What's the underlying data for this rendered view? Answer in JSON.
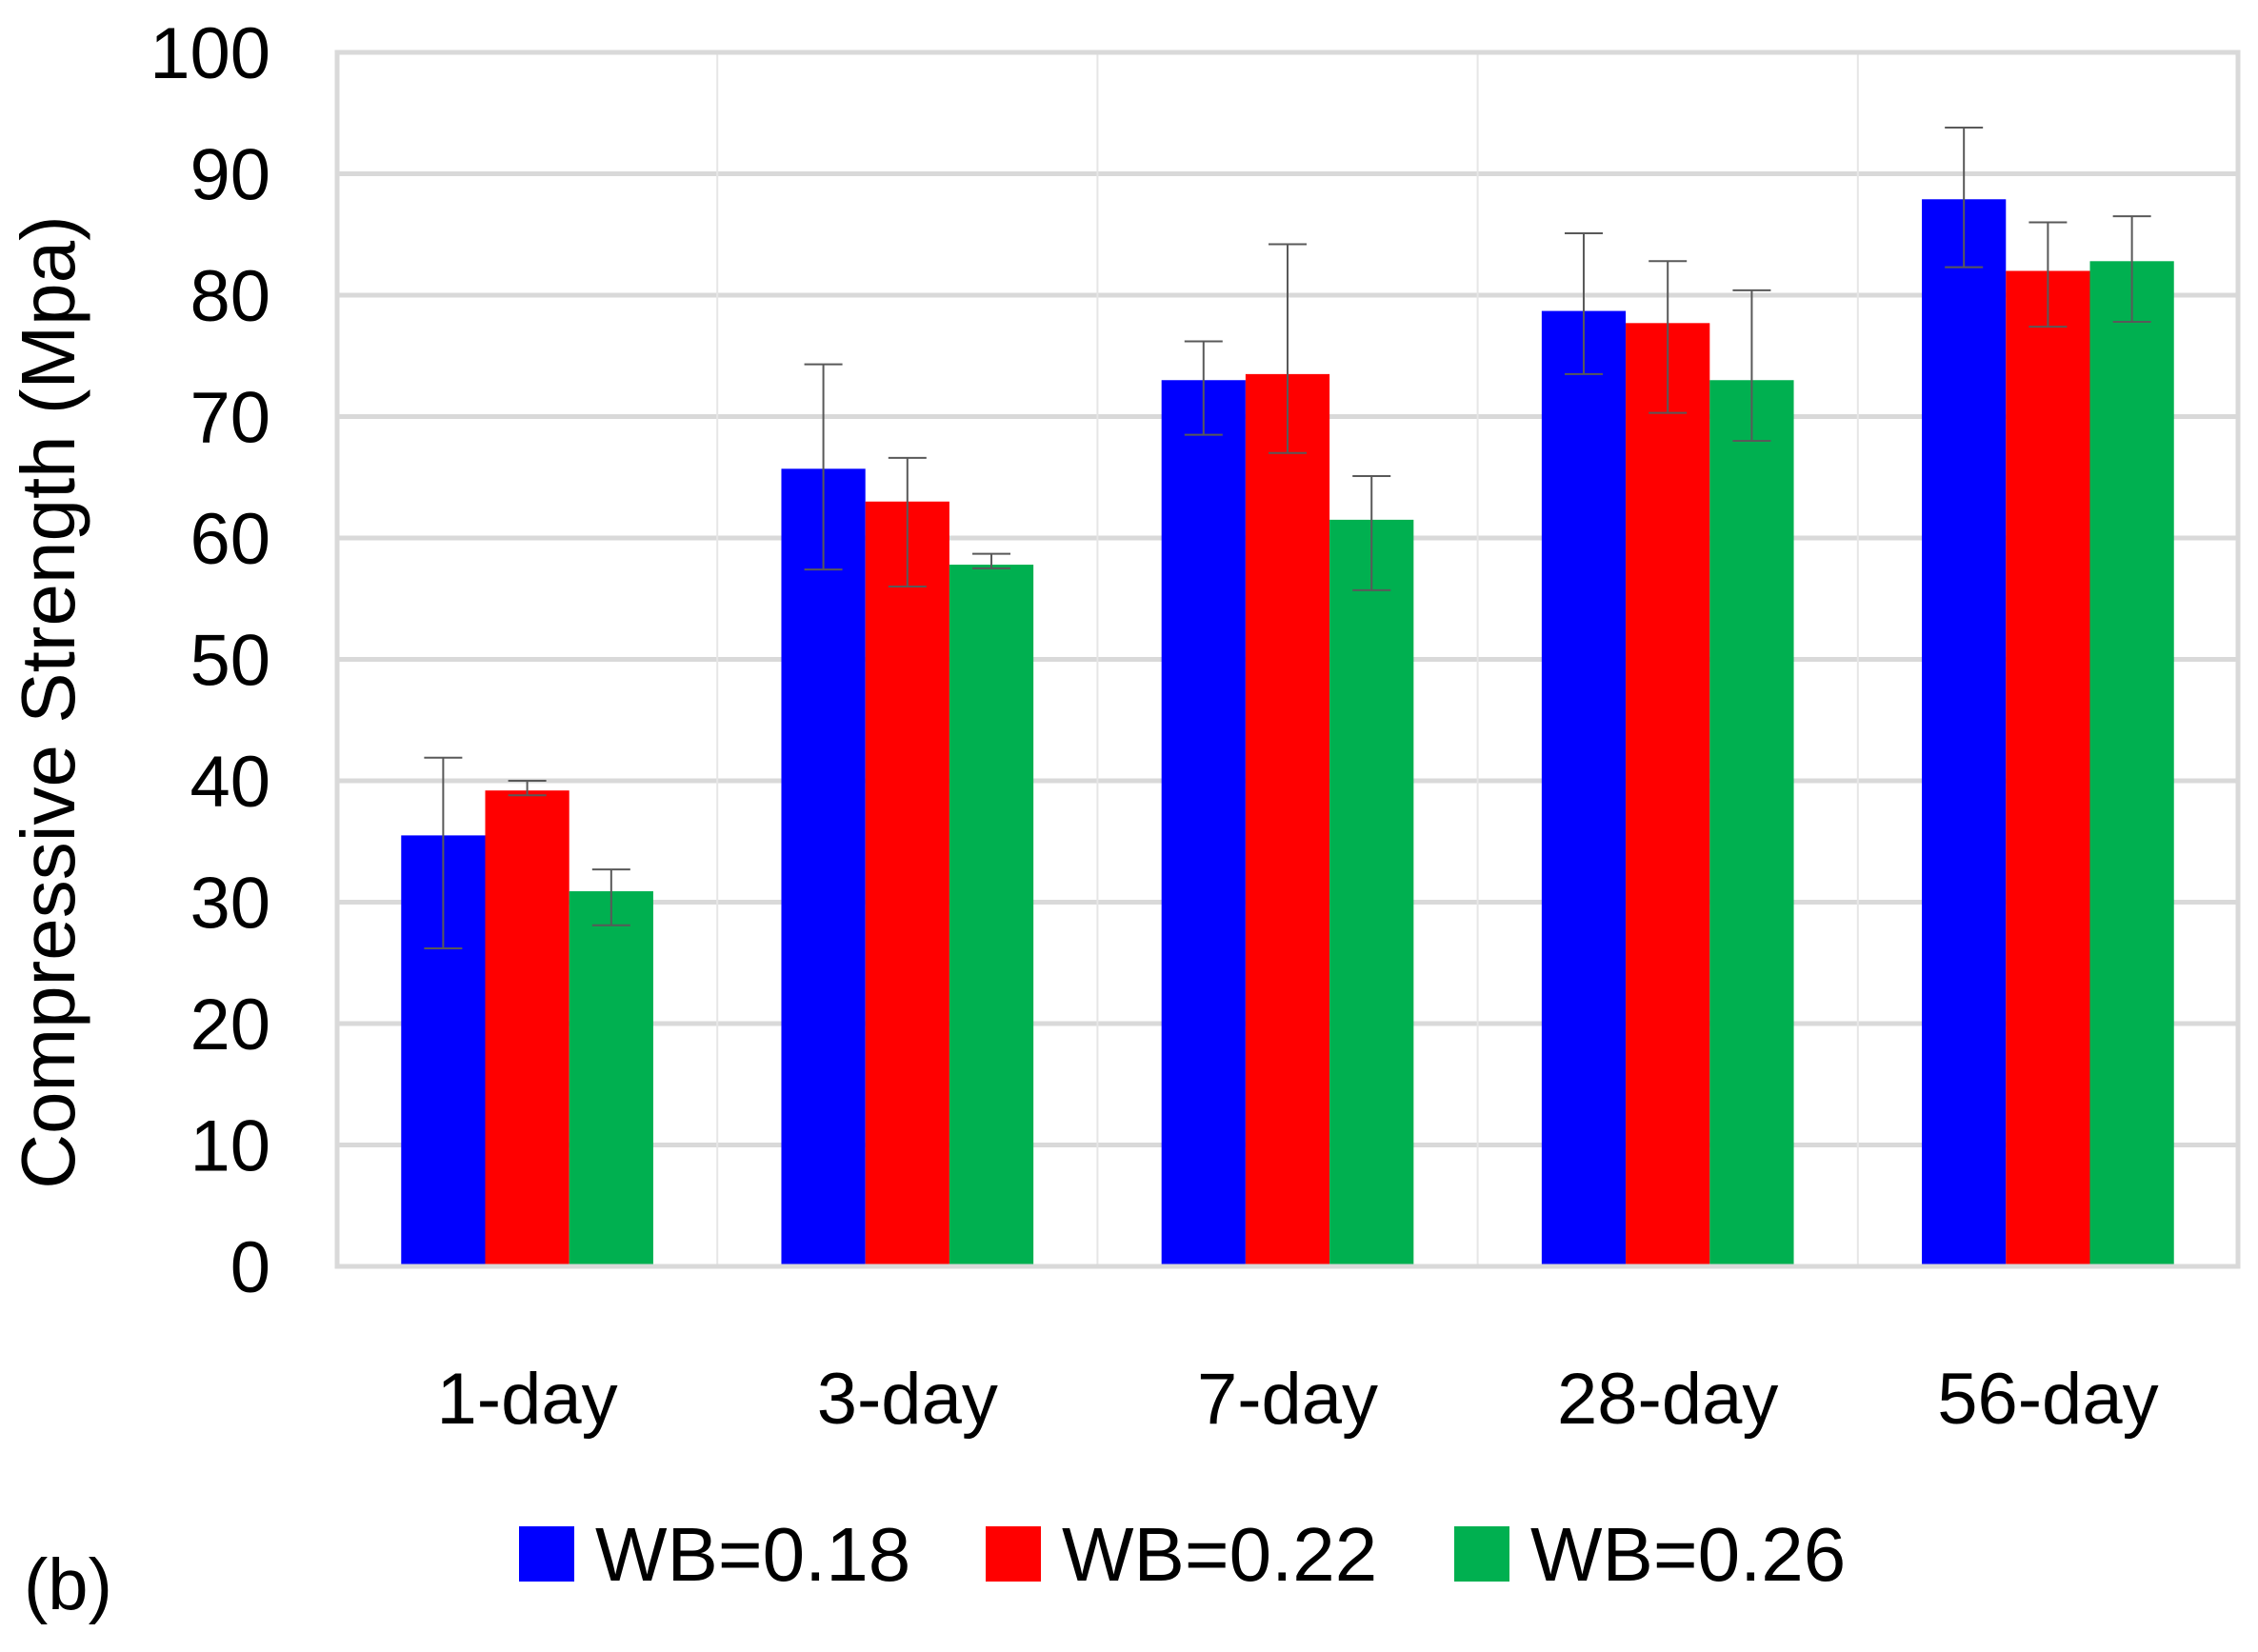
{
  "panel_label": "(b)",
  "chart_data": {
    "type": "bar",
    "title": "",
    "xlabel": "",
    "ylabel": "Compressive Strength (Mpa)",
    "ylim": [
      0,
      100
    ],
    "yticks": [
      0,
      10,
      20,
      30,
      40,
      50,
      60,
      70,
      80,
      90,
      100
    ],
    "grid": true,
    "legend_position": "bottom",
    "categories": [
      "1-day",
      "3-day",
      "7-day",
      "28-day",
      "56-day"
    ],
    "series": [
      {
        "name": "WB=0.18",
        "color": "#0000FF",
        "values": [
          35.5,
          65.7,
          73.0,
          78.7,
          87.9
        ],
        "error_low": [
          26.2,
          57.4,
          68.5,
          73.5,
          82.3
        ],
        "error_high": [
          41.9,
          74.3,
          76.2,
          85.1,
          93.8
        ]
      },
      {
        "name": "WB=0.22",
        "color": "#FF0000",
        "values": [
          39.2,
          63.0,
          73.5,
          77.7,
          82.0
        ],
        "error_low": [
          38.8,
          56.0,
          67.0,
          70.3,
          77.4
        ],
        "error_high": [
          40.0,
          66.6,
          84.2,
          82.8,
          86.0
        ]
      },
      {
        "name": "WB=0.26",
        "color": "#00B050",
        "values": [
          30.9,
          57.8,
          61.5,
          73.0,
          82.8
        ],
        "error_low": [
          28.1,
          57.5,
          55.7,
          68.0,
          77.8
        ],
        "error_high": [
          32.7,
          58.7,
          65.1,
          80.4,
          86.5
        ]
      }
    ]
  }
}
